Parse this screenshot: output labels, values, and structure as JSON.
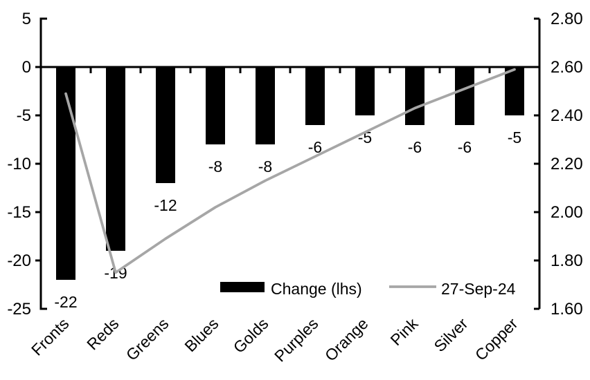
{
  "chart_data": {
    "type": "bar+line combo, dual y-axes",
    "categories": [
      "Fronts",
      "Reds",
      "Greens",
      "Blues",
      "Golds",
      "Purples",
      "Orange",
      "Pink",
      "Silver",
      "Copper"
    ],
    "series": [
      {
        "name": "Change (lhs)",
        "type": "bar",
        "axis": "left",
        "color": "#000000",
        "values": [
          -22,
          -19,
          -12,
          -8,
          -8,
          -6,
          -5,
          -6,
          -6,
          -5
        ],
        "data_labels": [
          "-22",
          "-19",
          "-12",
          "-8",
          "-8",
          "-6",
          "-5",
          "-6",
          "-6",
          "-5"
        ]
      },
      {
        "name": "27-Sep-24",
        "type": "line",
        "axis": "right",
        "color": "#a6a6a6",
        "values": [
          2.49,
          1.75,
          1.89,
          2.02,
          2.13,
          2.23,
          2.33,
          2.43,
          2.51,
          2.59
        ]
      }
    ],
    "left_axis": {
      "tick_labels": [
        "5",
        "0",
        "-5",
        "-10",
        "-15",
        "-20",
        "-25"
      ],
      "min": -25,
      "max": 5
    },
    "right_axis": {
      "tick_labels": [
        "2.80",
        "2.60",
        "2.40",
        "2.20",
        "2.00",
        "1.80",
        "1.60"
      ],
      "min": 1.6,
      "max": 2.8
    },
    "legend": {
      "position": "bottom-inside",
      "entries": [
        {
          "label": "Change (lhs)",
          "swatch": "bar",
          "color": "#000000"
        },
        {
          "label": "27-Sep-24",
          "swatch": "line",
          "color": "#a6a6a6"
        }
      ]
    },
    "grid": false,
    "title": "",
    "xlabel": "",
    "ylabel": ""
  },
  "colors": {
    "background": "#ffffff",
    "axis": "#000000",
    "bar": "#000000",
    "line": "#a6a6a6",
    "text": "#000000"
  }
}
